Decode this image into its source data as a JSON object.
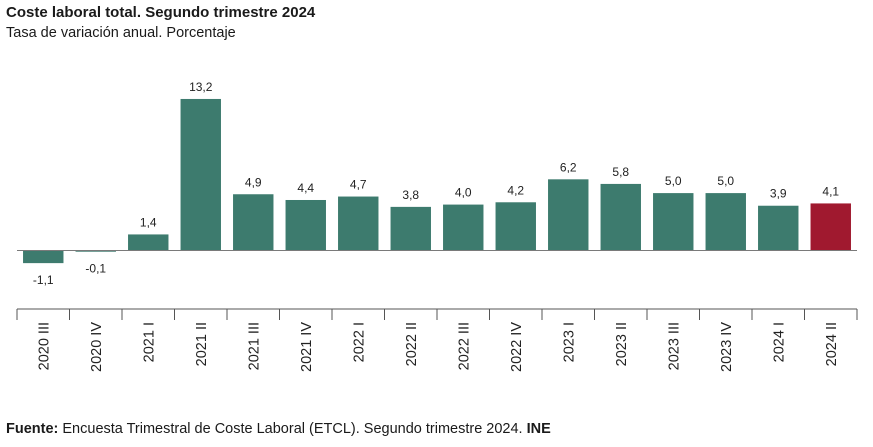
{
  "chart_data": {
    "type": "bar",
    "title": "Coste laboral total. Segundo trimestre 2024",
    "subtitle": "Tasa de variación anual. Porcentaje",
    "categories": [
      "2020 III",
      "2020 IV",
      "2021 I",
      "2021 II",
      "2021 III",
      "2021 IV",
      "2022 I",
      "2022 II",
      "2022 III",
      "2022 IV",
      "2023 I",
      "2023 II",
      "2023 III",
      "2023 IV",
      "2024 I",
      "2024 II"
    ],
    "values": [
      -1.1,
      -0.1,
      1.4,
      13.2,
      4.9,
      4.4,
      4.7,
      3.8,
      4.0,
      4.2,
      6.2,
      5.8,
      5.0,
      5.0,
      3.9,
      4.1
    ],
    "value_labels": [
      "-1,1",
      "-0,1",
      "1,4",
      "13,2",
      "4,9",
      "4,4",
      "4,7",
      "3,8",
      "4,0",
      "4,2",
      "6,2",
      "5,8",
      "5,0",
      "5,0",
      "3,9",
      "4,1"
    ],
    "highlight_index": 15,
    "xlabel": "",
    "ylabel": "",
    "ylim": [
      -1.1,
      13.2
    ],
    "grid": false,
    "colors": {
      "bar": "#3d7b6e",
      "highlight": "#a0192f",
      "axis": "#555555"
    }
  },
  "source": {
    "label": "Fuente:",
    "text": "Encuesta Trimestral de Coste Laboral (ETCL). Segundo trimestre 2024.",
    "org": "INE"
  }
}
